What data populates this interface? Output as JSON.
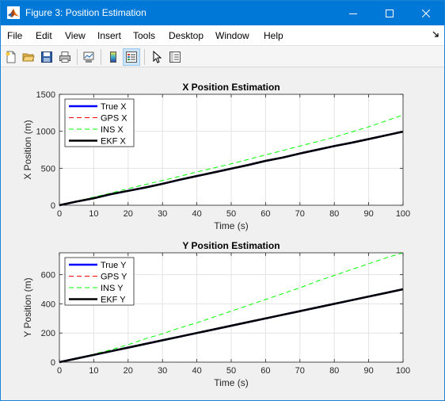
{
  "window": {
    "title": "Figure 3: Position Estimation"
  },
  "menu": {
    "items": [
      "File",
      "Edit",
      "View",
      "Insert",
      "Tools",
      "Desktop",
      "Window",
      "Help"
    ]
  },
  "toolbar": {
    "icons": [
      "new-figure-icon",
      "open-file-icon",
      "save-icon",
      "print-icon",
      "link-plot-icon",
      "insert-colorbar-icon",
      "insert-legend-icon",
      "edit-plot-icon",
      "property-inspector-icon"
    ]
  },
  "colors": {
    "true": "#0000ff",
    "gps": "#ff0000",
    "ins": "#00ff00",
    "ekf": "#000000",
    "titlebar": "#0078d7"
  },
  "chart_data": [
    {
      "type": "line",
      "title": "X Position Estimation",
      "xlabel": "Time (s)",
      "ylabel": "X Position (m)",
      "xlim": [
        0,
        100
      ],
      "ylim": [
        0,
        1500
      ],
      "xticks": [
        0,
        10,
        20,
        30,
        40,
        50,
        60,
        70,
        80,
        90,
        100
      ],
      "yticks": [
        0,
        500,
        1000,
        1500
      ],
      "grid": true,
      "legend_position": "top-left",
      "x": [
        0,
        5,
        10,
        15,
        20,
        25,
        30,
        35,
        40,
        45,
        50,
        55,
        60,
        65,
        70,
        75,
        80,
        85,
        90,
        95,
        100
      ],
      "series": [
        {
          "name": "True X",
          "values": [
            0,
            50,
            95,
            150,
            195,
            240,
            290,
            345,
            395,
            445,
            495,
            545,
            600,
            645,
            700,
            750,
            800,
            845,
            895,
            945,
            995
          ]
        },
        {
          "name": "GPS X",
          "values": [
            0,
            48,
            97,
            148,
            197,
            238,
            292,
            343,
            397,
            443,
            497,
            543,
            602,
            643,
            702,
            748,
            802,
            843,
            897,
            943,
            997
          ]
        },
        {
          "name": "INS X",
          "values": [
            0,
            55,
            110,
            165,
            225,
            280,
            335,
            390,
            450,
            505,
            560,
            620,
            680,
            740,
            800,
            860,
            920,
            990,
            1060,
            1140,
            1220
          ]
        },
        {
          "name": "EKF X",
          "values": [
            0,
            50,
            95,
            150,
            195,
            240,
            290,
            345,
            395,
            445,
            495,
            545,
            600,
            645,
            700,
            750,
            800,
            845,
            895,
            945,
            995
          ]
        }
      ]
    },
    {
      "type": "line",
      "title": "Y Position Estimation",
      "xlabel": "Time (s)",
      "ylabel": "Y Position (m)",
      "xlim": [
        0,
        100
      ],
      "ylim": [
        0,
        750
      ],
      "xticks": [
        0,
        10,
        20,
        30,
        40,
        50,
        60,
        70,
        80,
        90,
        100
      ],
      "yticks": [
        0,
        200,
        400,
        600
      ],
      "grid": true,
      "legend_position": "top-left",
      "x": [
        0,
        5,
        10,
        15,
        20,
        25,
        30,
        35,
        40,
        45,
        50,
        55,
        60,
        65,
        70,
        75,
        80,
        85,
        90,
        95,
        100
      ],
      "series": [
        {
          "name": "True Y",
          "values": [
            0,
            25,
            50,
            75,
            100,
            125,
            150,
            175,
            200,
            225,
            250,
            275,
            300,
            325,
            350,
            375,
            400,
            425,
            450,
            475,
            500
          ]
        },
        {
          "name": "GPS Y",
          "values": [
            0,
            24,
            52,
            73,
            102,
            123,
            152,
            173,
            202,
            223,
            252,
            273,
            302,
            323,
            352,
            373,
            402,
            423,
            452,
            473,
            502
          ]
        },
        {
          "name": "INS Y",
          "values": [
            0,
            27,
            55,
            85,
            120,
            160,
            195,
            235,
            270,
            310,
            350,
            390,
            430,
            470,
            510,
            555,
            595,
            635,
            675,
            715,
            750
          ]
        },
        {
          "name": "EKF Y",
          "values": [
            0,
            25,
            50,
            75,
            100,
            125,
            150,
            175,
            200,
            225,
            250,
            275,
            300,
            325,
            350,
            375,
            400,
            425,
            450,
            475,
            500
          ]
        }
      ]
    }
  ]
}
